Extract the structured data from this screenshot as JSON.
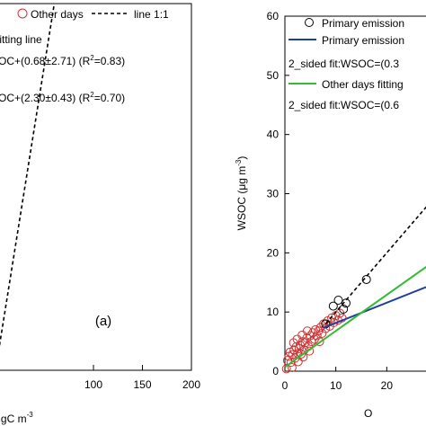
{
  "chart_data": [
    {
      "type": "scatter",
      "panel_label": "(a)",
      "xlabel": "μgC m",
      "xlabel_sup": "-3",
      "xlim": [
        0,
        200
      ],
      "ylim": [
        0,
        60
      ],
      "x_ticks": [
        100,
        150,
        200
      ],
      "legend": {
        "placement": "top-left",
        "entries": [
          {
            "label": "Other days",
            "marker": "circle",
            "color": "#cc3333"
          },
          {
            "label": "line 1:1",
            "style": "dashed",
            "color": "#000000"
          },
          {
            "label": "fitting line",
            "style": "solid",
            "color": "#000000"
          }
        ]
      },
      "annotations": [
        {
          "text": "OC+(0.68±2.71)  (R",
          "sup": "2",
          "tail": "=0.83)"
        },
        {
          "text": "OC+(2.30±0.43)  (R",
          "sup": "2",
          "tail": "=0.70)"
        }
      ],
      "series": [
        {
          "name": "line 1:1",
          "style": "dashed",
          "points": [
            [
              0,
              0
            ],
            [
              60,
              60
            ]
          ]
        }
      ]
    },
    {
      "type": "scatter",
      "ylabel": "WSOC (μg m",
      "ylabel_sup": "-3",
      "ylabel_tail": ")",
      "xlabel": "O",
      "xlim": [
        0,
        30
      ],
      "ylim": [
        0,
        60
      ],
      "y_ticks": [
        0,
        10,
        20,
        30,
        40,
        50,
        60
      ],
      "x_ticks": [
        0,
        10,
        20
      ],
      "legend": {
        "placement": "top-left",
        "entries": [
          {
            "label": "Primary emission",
            "marker": "circle",
            "color": "#000000"
          },
          {
            "label": "Primary emission",
            "style": "solid",
            "color": "#1f3f9f"
          },
          {
            "label": "2_sided fit:WSOC=(0.3",
            "style": "none",
            "color": "#000000"
          },
          {
            "label": "Other days fitting",
            "style": "solid",
            "color": "#33bb33"
          },
          {
            "label": "2_sided fit:WSOC=(0.6",
            "style": "none",
            "color": "#000000"
          }
        ]
      },
      "series": [
        {
          "name": "Other days",
          "marker": "circle",
          "color": "#cc3333",
          "points": [
            [
              0.5,
              1.8
            ],
            [
              0.8,
              2.5
            ],
            [
              1.0,
              3.2
            ],
            [
              1.2,
              1.5
            ],
            [
              1.5,
              2.8
            ],
            [
              1.8,
              3.6
            ],
            [
              2.0,
              2.2
            ],
            [
              2.2,
              4.1
            ],
            [
              2.5,
              3.0
            ],
            [
              2.8,
              3.8
            ],
            [
              3.0,
              4.4
            ],
            [
              3.2,
              2.9
            ],
            [
              3.5,
              5.0
            ],
            [
              3.8,
              3.6
            ],
            [
              4.0,
              4.8
            ],
            [
              4.3,
              5.6
            ],
            [
              4.6,
              4.2
            ],
            [
              5.0,
              6.0
            ],
            [
              5.2,
              5.0
            ],
            [
              5.5,
              6.5
            ],
            [
              5.8,
              5.4
            ],
            [
              6.0,
              7.0
            ],
            [
              6.3,
              6.0
            ],
            [
              6.6,
              6.8
            ],
            [
              7.0,
              7.4
            ],
            [
              7.3,
              6.4
            ],
            [
              7.6,
              8.0
            ],
            [
              8.0,
              7.2
            ],
            [
              8.4,
              8.5
            ],
            [
              8.8,
              7.6
            ],
            [
              9.2,
              9.0
            ],
            [
              9.6,
              8.2
            ],
            [
              10.0,
              9.4
            ],
            [
              10.4,
              8.6
            ],
            [
              10.8,
              9.8
            ],
            [
              11.2,
              9.0
            ],
            [
              1.4,
              0.6
            ],
            [
              2.6,
              1.6
            ],
            [
              3.6,
              2.4
            ],
            [
              4.8,
              3.4
            ],
            [
              6.8,
              5.0
            ],
            [
              0.3,
              0.4
            ],
            [
              1.7,
              4.8
            ],
            [
              2.4,
              5.4
            ],
            [
              3.4,
              6.1
            ],
            [
              4.4,
              6.8
            ]
          ]
        },
        {
          "name": "Primary emission",
          "marker": "circle",
          "color": "#000000",
          "points": [
            [
              8.0,
              8.0
            ],
            [
              9.5,
              11.0
            ],
            [
              10.5,
              12.0
            ],
            [
              11.5,
              10.5
            ],
            [
              16.0,
              15.5
            ],
            [
              12.0,
              11.5
            ]
          ]
        },
        {
          "name": "Primary emission",
          "style": "solid",
          "color": "#1f3f9f",
          "points": [
            [
              7.5,
              7.3
            ],
            [
              30,
              15.0
            ]
          ]
        },
        {
          "name": "Other days fitting",
          "style": "solid",
          "color": "#33bb33",
          "points": [
            [
              0,
              0.7
            ],
            [
              30,
              19.0
            ]
          ]
        },
        {
          "style": "dashed",
          "color": "#000000",
          "points": [
            [
              8,
              8.0
            ],
            [
              30,
              30.0
            ]
          ]
        }
      ]
    }
  ]
}
